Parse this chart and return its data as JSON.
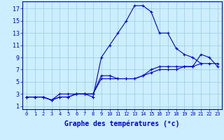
{
  "title": "Graphe des températures (°c)",
  "bg_color": "#cceeff",
  "line_color": "#0000cc",
  "grid_color": "#99ccdd",
  "x_ticks": [
    0,
    1,
    2,
    3,
    4,
    5,
    6,
    7,
    8,
    9,
    10,
    11,
    12,
    13,
    14,
    15,
    16,
    17,
    18,
    19,
    20,
    21,
    22,
    23
  ],
  "y_ticks": [
    1,
    3,
    5,
    7,
    9,
    11,
    13,
    15,
    17
  ],
  "ylim": [
    0.5,
    18.2
  ],
  "xlim": [
    -0.5,
    23.5
  ],
  "line1_x": [
    0,
    1,
    2,
    3,
    4,
    5,
    6,
    7,
    8,
    9,
    10,
    11,
    12,
    13,
    14,
    15,
    16,
    17,
    18,
    19,
    20,
    21
  ],
  "line1_y": [
    2.5,
    2.5,
    2.5,
    2.0,
    2.5,
    2.5,
    3.0,
    3.0,
    2.5,
    9.0,
    11.0,
    13.0,
    15.0,
    17.5,
    17.5,
    16.5,
    13.0,
    13.0,
    10.5,
    9.5,
    9.0,
    8.0
  ],
  "line2_x": [
    0,
    1,
    2,
    3,
    4,
    5,
    6,
    7,
    8,
    9,
    10,
    11,
    12,
    13,
    14,
    15,
    16,
    17,
    18,
    19,
    20,
    21,
    22,
    23
  ],
  "line2_y": [
    2.5,
    2.5,
    2.5,
    2.0,
    2.5,
    2.5,
    3.0,
    3.0,
    3.0,
    5.5,
    5.5,
    5.5,
    5.5,
    5.5,
    6.0,
    6.5,
    7.0,
    7.0,
    7.0,
    7.5,
    7.5,
    8.0,
    8.0,
    8.0
  ],
  "line3_x": [
    0,
    1,
    2,
    3,
    4,
    5,
    6,
    7,
    8,
    9,
    10,
    11,
    12,
    13,
    14,
    15,
    16,
    17,
    18,
    19,
    20,
    21,
    22,
    23
  ],
  "line3_y": [
    2.5,
    2.5,
    2.5,
    2.0,
    3.0,
    3.0,
    3.0,
    3.0,
    3.0,
    6.0,
    6.0,
    5.5,
    5.5,
    5.5,
    6.0,
    7.0,
    7.5,
    7.5,
    7.5,
    7.5,
    7.5,
    9.5,
    9.0,
    7.5
  ]
}
